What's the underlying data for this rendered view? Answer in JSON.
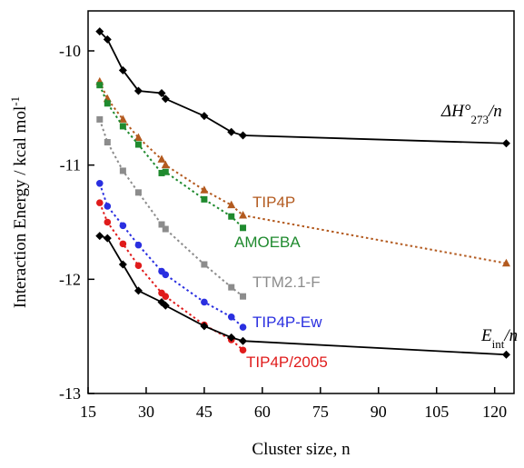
{
  "chart_data": {
    "type": "line",
    "xlabel": "Cluster size, n",
    "ylabel": "Interaction Energy  / kcal mol",
    "ylabel_sup": "-1",
    "xlim": [
      15,
      125
    ],
    "ylim": [
      -13,
      -9.65
    ],
    "xticks": [
      15,
      30,
      45,
      60,
      75,
      90,
      105,
      120
    ],
    "xtick_labels": [
      "15",
      "30",
      "45",
      "60",
      "75",
      "90",
      "105",
      "120"
    ],
    "yticks": [
      -13,
      -12,
      -11,
      -10
    ],
    "ytick_labels": [
      "-13",
      "-12",
      "-11",
      "-10"
    ],
    "grid": false,
    "legend": "none",
    "series": [
      {
        "key": "dh",
        "label_base": "ΔH°",
        "label_sub": "273",
        "label_tail": "/n",
        "color": "#000000",
        "marker": "diamond",
        "line": "solid",
        "points": [
          [
            18,
            -9.83
          ],
          [
            20,
            -9.9
          ],
          [
            24,
            -10.17
          ],
          [
            28,
            -10.35
          ],
          [
            34,
            -10.37
          ],
          [
            35,
            -10.42
          ],
          [
            45,
            -10.57
          ],
          [
            52,
            -10.71
          ],
          [
            55,
            -10.74
          ],
          [
            123,
            -10.81
          ]
        ]
      },
      {
        "key": "tip4p",
        "label": "TIP4P",
        "color": "#b35a1f",
        "marker": "triangle",
        "line": "dotted",
        "points": [
          [
            18,
            -10.27
          ],
          [
            20,
            -10.42
          ],
          [
            24,
            -10.6
          ],
          [
            28,
            -10.76
          ],
          [
            34,
            -10.95
          ],
          [
            35,
            -11.0
          ],
          [
            45,
            -11.22
          ],
          [
            52,
            -11.35
          ],
          [
            55,
            -11.44
          ],
          [
            123,
            -11.86
          ]
        ]
      },
      {
        "key": "amoeba",
        "label": "AMOEBA",
        "color": "#1f8a2e",
        "marker": "square",
        "line": "dotted",
        "points": [
          [
            18,
            -10.3
          ],
          [
            20,
            -10.46
          ],
          [
            24,
            -10.66
          ],
          [
            28,
            -10.82
          ],
          [
            34,
            -11.07
          ],
          [
            35,
            -11.06
          ],
          [
            45,
            -11.3
          ],
          [
            52,
            -11.45
          ],
          [
            55,
            -11.55
          ]
        ]
      },
      {
        "key": "ttm",
        "label": "TTM2.1-F",
        "color": "#8c8c8c",
        "marker": "square",
        "line": "dotted",
        "points": [
          [
            18,
            -10.6
          ],
          [
            20,
            -10.8
          ],
          [
            24,
            -11.05
          ],
          [
            28,
            -11.24
          ],
          [
            34,
            -11.52
          ],
          [
            35,
            -11.56
          ],
          [
            45,
            -11.87
          ],
          [
            52,
            -12.07
          ],
          [
            55,
            -12.15
          ]
        ]
      },
      {
        "key": "tip4pew",
        "label": "TIP4P-Ew",
        "color": "#2a2fe0",
        "marker": "circle",
        "line": "dotted",
        "points": [
          [
            18,
            -11.16
          ],
          [
            20,
            -11.36
          ],
          [
            24,
            -11.53
          ],
          [
            28,
            -11.7
          ],
          [
            34,
            -11.93
          ],
          [
            35,
            -11.96
          ],
          [
            45,
            -12.2
          ],
          [
            52,
            -12.33
          ],
          [
            55,
            -12.42
          ]
        ]
      },
      {
        "key": "tip4p2005",
        "label": "TIP4P/2005",
        "color": "#e01b1b",
        "marker": "circle",
        "line": "dotted",
        "points": [
          [
            18,
            -11.33
          ],
          [
            20,
            -11.5
          ],
          [
            24,
            -11.69
          ],
          [
            28,
            -11.88
          ],
          [
            34,
            -12.12
          ],
          [
            35,
            -12.15
          ],
          [
            45,
            -12.4
          ],
          [
            52,
            -12.53
          ],
          [
            55,
            -12.62
          ]
        ]
      },
      {
        "key": "eint",
        "label_base": "E",
        "label_sub": "int",
        "label_tail": "/n",
        "color": "#000000",
        "marker": "diamond",
        "line": "solid",
        "points": [
          [
            18,
            -11.62
          ],
          [
            20,
            -11.64
          ],
          [
            24,
            -11.87
          ],
          [
            28,
            -12.1
          ],
          [
            34,
            -12.2
          ],
          [
            35,
            -12.23
          ],
          [
            45,
            -12.41
          ],
          [
            52,
            -12.51
          ],
          [
            55,
            -12.54
          ],
          [
            123,
            -12.66
          ]
        ]
      }
    ]
  }
}
